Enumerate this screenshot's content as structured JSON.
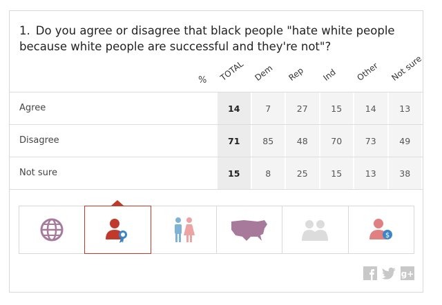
{
  "question": {
    "number": "1.",
    "text": "Do you agree or disagree that black people \"hate white people because white people are successful and they're not\"?"
  },
  "table": {
    "unit": "%",
    "columns": [
      "TOTAL",
      "Dem",
      "Rep",
      "Ind",
      "Other",
      "Not sure"
    ],
    "rows": [
      {
        "label": "Agree",
        "values": [
          14,
          7,
          27,
          15,
          14,
          13
        ]
      },
      {
        "label": "Disagree",
        "values": [
          71,
          85,
          48,
          70,
          73,
          49
        ]
      },
      {
        "label": "Not sure",
        "values": [
          15,
          8,
          25,
          15,
          13,
          38
        ]
      }
    ]
  }
}
